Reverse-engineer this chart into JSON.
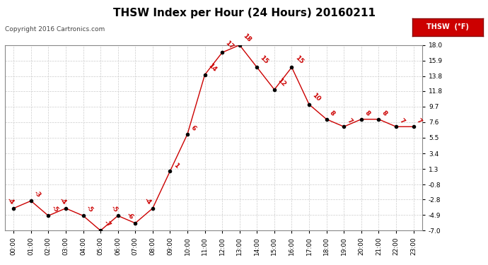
{
  "title": "THSW Index per Hour (24 Hours) 20160211",
  "copyright": "Copyright 2016 Cartronics.com",
  "legend_label": "THSW  (°F)",
  "hours": [
    0,
    1,
    2,
    3,
    4,
    5,
    6,
    7,
    8,
    9,
    10,
    11,
    12,
    13,
    14,
    15,
    16,
    17,
    18,
    19,
    20,
    21,
    22,
    23
  ],
  "values": [
    -4.0,
    -3.0,
    -5.0,
    -4.0,
    -5.0,
    -7.0,
    -5.0,
    -6.0,
    -4.0,
    1.0,
    6.0,
    14.0,
    17.0,
    18.0,
    15.0,
    12.0,
    15.0,
    10.0,
    8.0,
    7.0,
    8.0,
    8.0,
    7.0,
    7.0
  ],
  "labels": [
    "-4",
    "-3",
    "-5",
    "-4",
    "-5",
    "-7",
    "-5",
    "-6",
    "-4",
    "1",
    "6",
    "14",
    "17",
    "18",
    "15",
    "12",
    "15",
    "10",
    "8",
    "7",
    "8",
    "8",
    "7",
    "7"
  ],
  "line_color": "#cc0000",
  "marker_color": "#000000",
  "background_color": "#ffffff",
  "grid_color": "#cccccc",
  "ylim": [
    -7.0,
    18.0
  ],
  "yticks": [
    -7.0,
    -4.9,
    -2.8,
    -0.8,
    1.3,
    3.4,
    5.5,
    7.6,
    9.7,
    11.8,
    13.8,
    15.9,
    18.0
  ],
  "title_fontsize": 11,
  "label_fontsize": 6.5,
  "axis_fontsize": 6.5,
  "copyright_fontsize": 6.5,
  "legend_bg": "#cc0000",
  "legend_text_color": "#ffffff",
  "legend_fontsize": 7
}
